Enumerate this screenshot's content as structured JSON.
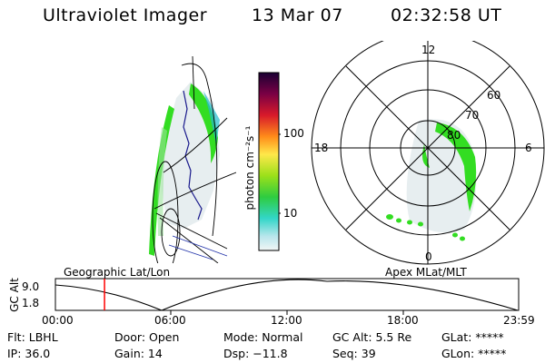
{
  "header": {
    "instrument": "Ultraviolet Imager",
    "date": "13 Mar 07",
    "time": "02:32:58 UT"
  },
  "colorbar": {
    "unit_label": "photon cm⁻²s⁻¹",
    "ticks": [
      "100",
      "10"
    ]
  },
  "polar": {
    "mlt_labels": [
      "12",
      "18",
      "6",
      "0"
    ],
    "lat_labels": [
      "60",
      "70",
      "80"
    ]
  },
  "timeline": {
    "left_label": "Geographic Lat/Lon",
    "right_label": "Apex MLat/MLT",
    "axis_label": "GC Alt",
    "y_ticks": [
      "9.0",
      "1.8"
    ],
    "x_ticks": [
      "00:00",
      "06:00",
      "12:00",
      "18:00",
      "23:59"
    ],
    "current_time_fraction": 0.106
  },
  "status": {
    "flt": "Flt: LBHL",
    "ip": "IP: 36.0",
    "door": "Door: Open",
    "gain": "Gain: 14",
    "mode": "Mode: Normal",
    "dsp": "Dsp:  −11.8",
    "gc_alt": "GC Alt: 5.5 Re",
    "seq": "Seq: 39",
    "glat": "GLat: *****",
    "glon": "GLon: *****"
  },
  "colors": {
    "aurora_green": "#33dd22",
    "aurora_diffuse": "#e4ecee",
    "cursor": "#ff0000"
  }
}
